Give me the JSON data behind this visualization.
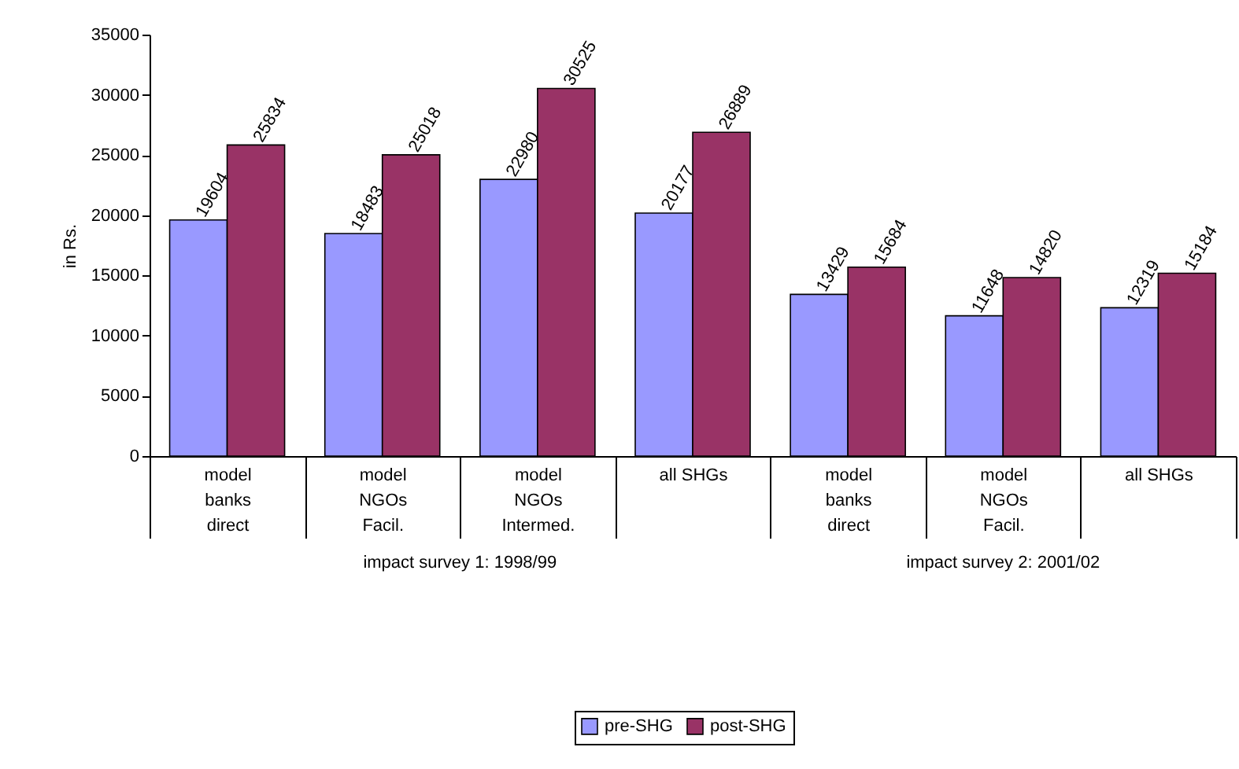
{
  "chart_data": {
    "type": "bar",
    "ylabel": "in Rs.",
    "categories": [
      "model\nbanks\ndirect",
      "model\nNGOs\nFacil.",
      "model\nNGOs\nIntermed.",
      "all SHGs",
      "model\nbanks\ndirect",
      "model\nNGOs\nFacil.",
      "all SHGs"
    ],
    "series": [
      {
        "name": "pre-SHG",
        "color": "#9999ff",
        "values": [
          19604,
          18483,
          22980,
          20177,
          13429,
          11648,
          12319
        ]
      },
      {
        "name": "post-SHG",
        "color": "#993366",
        "values": [
          25834,
          25018,
          30525,
          26889,
          15684,
          14820,
          15184
        ]
      }
    ],
    "ylim": [
      0,
      35000
    ],
    "yticks": [
      0,
      5000,
      10000,
      15000,
      20000,
      25000,
      30000,
      35000
    ],
    "data_labels": true,
    "legend": "bottom",
    "grid": false,
    "annotations": [
      "impact survey 1: 1998/99",
      "impact survey 2: 2001/02"
    ]
  }
}
